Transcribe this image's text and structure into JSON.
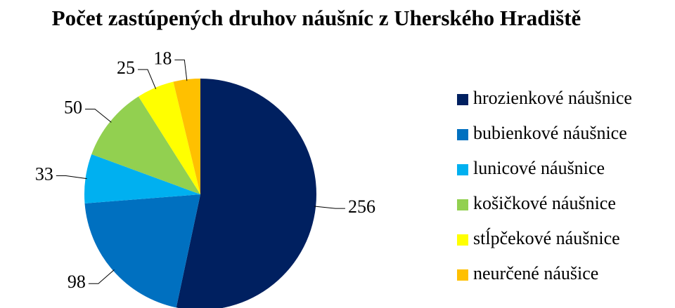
{
  "chart_data": {
    "type": "pie",
    "title": "Počet zastúpených druhov náušníc z Uherského Hradiště",
    "categories": [
      "hrozienkové náušnice",
      "bubienkové náušnice",
      "lunicové náušnice",
      "košičkové náušnice",
      "stĺpčekové náušnice",
      "neurčené náušice"
    ],
    "values": [
      256,
      98,
      33,
      50,
      25,
      18
    ],
    "colors": [
      "#002060",
      "#0070c0",
      "#00b0f0",
      "#92d050",
      "#ffff00",
      "#ffc000"
    ],
    "legend": "right"
  }
}
